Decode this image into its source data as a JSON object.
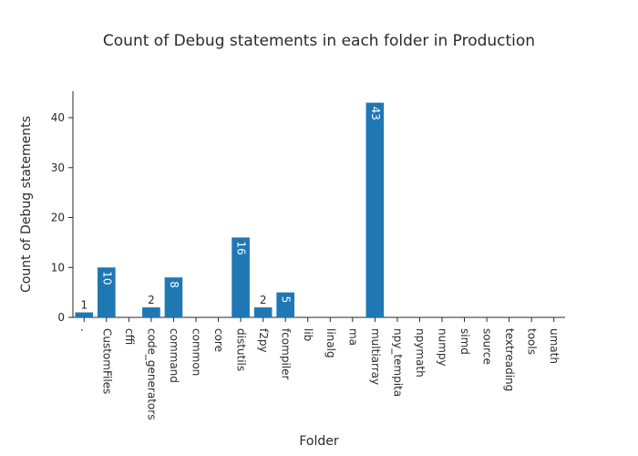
{
  "chart_data": {
    "type": "bar",
    "title": "Count of Debug statements in each folder in Production",
    "xlabel": "Folder",
    "ylabel": "Count of Debug statements",
    "categories": [
      ".",
      "CustomFiles",
      "cffi",
      "code_generators",
      "command",
      "common",
      "core",
      "distutils",
      "f2py",
      "fcompiler",
      "lib",
      "linalg",
      "ma",
      "multiarray",
      "npy_tempita",
      "npymath",
      "numpy",
      "simd",
      "source",
      "textreading",
      "tools",
      "umath"
    ],
    "values": [
      1,
      10,
      0,
      2,
      8,
      0,
      0,
      16,
      2,
      5,
      0,
      0,
      0,
      43,
      0,
      0,
      0,
      0,
      0,
      0,
      0,
      0
    ],
    "ylim": [
      0,
      45.3
    ],
    "yticks": [
      0,
      10,
      20,
      30,
      40
    ],
    "grid": false,
    "legend": "none",
    "bar_color": "#1f77b4"
  }
}
